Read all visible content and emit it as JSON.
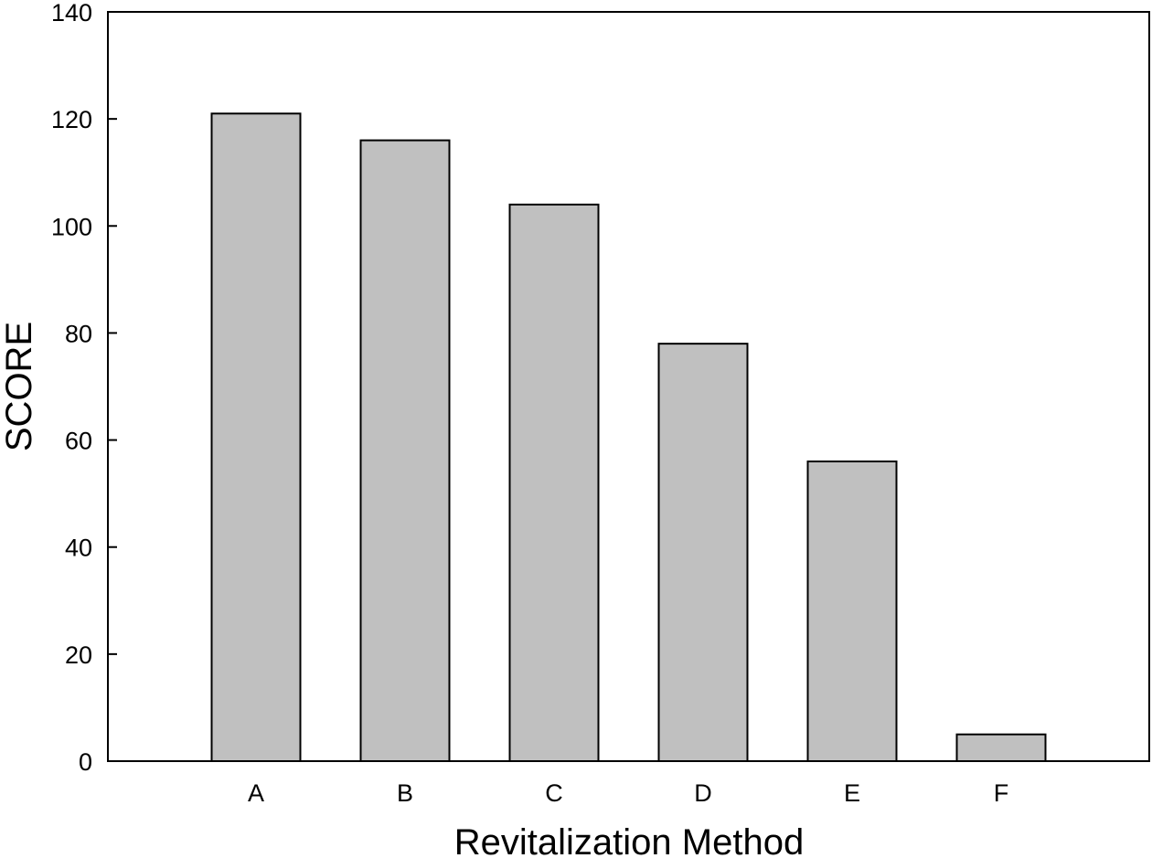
{
  "chart_data": {
    "type": "bar",
    "title": "",
    "xlabel": "Revitalization Method",
    "ylabel": "SCORE",
    "categories": [
      "A",
      "B",
      "C",
      "D",
      "E",
      "F"
    ],
    "values": [
      121,
      116,
      104,
      78,
      56,
      5
    ],
    "ylim": [
      0,
      140
    ],
    "yticks": [
      "0",
      "20",
      "40",
      "60",
      "80",
      "100",
      "120",
      "140"
    ],
    "grid": false,
    "legend": "none",
    "colors": {
      "bar_fill": "#c0c0c0",
      "bar_stroke": "#000000",
      "axis": "#000000"
    }
  }
}
